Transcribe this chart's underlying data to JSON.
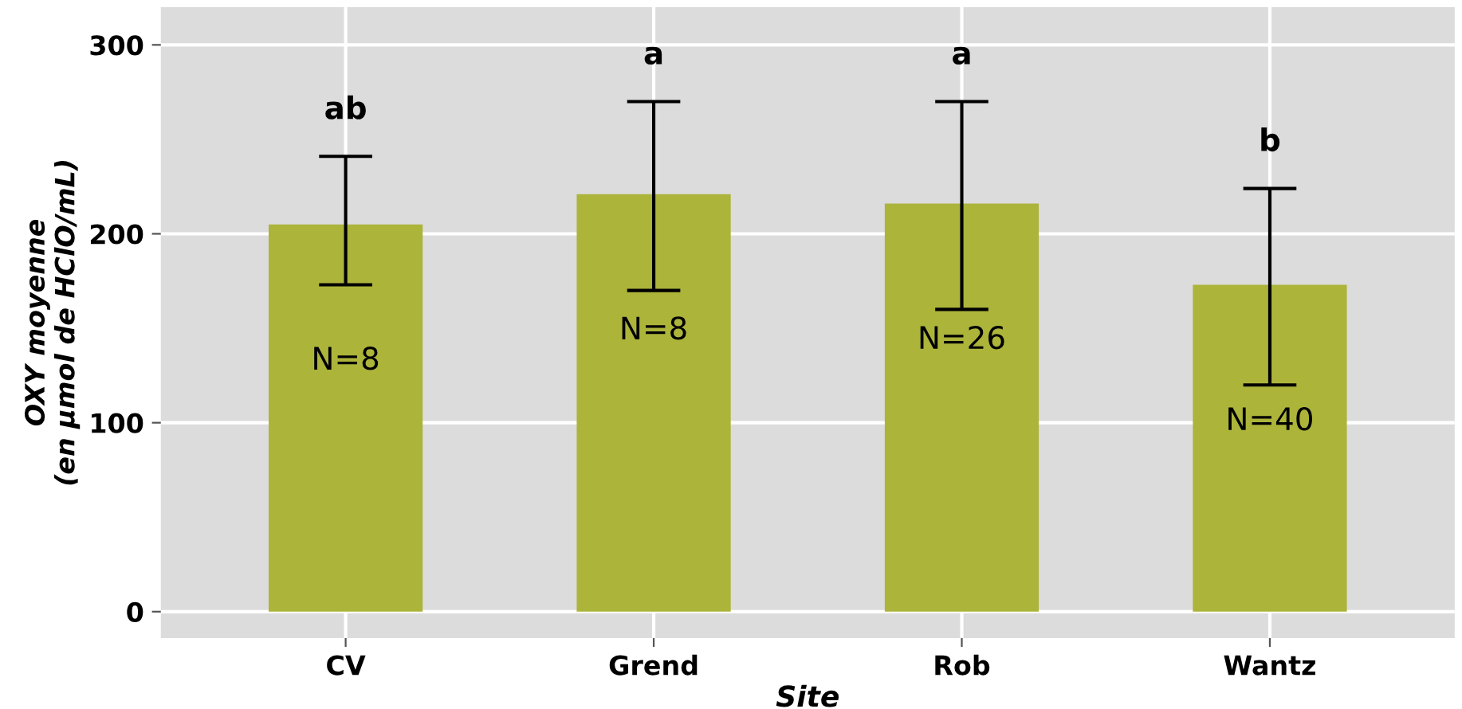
{
  "chart_data": {
    "type": "bar",
    "xlabel": "Site",
    "ylabel": "OXY moyenne\n(en µmol de HClO/mL)",
    "categories": [
      "CV",
      "Grend",
      "Rob",
      "Wantz"
    ],
    "values": [
      205,
      221,
      216,
      173
    ],
    "errors": [
      [
        173,
        241
      ],
      [
        170,
        270
      ],
      [
        160,
        270
      ],
      [
        120,
        224
      ]
    ],
    "color": "#acb43a",
    "ylim": [
      -14,
      320
    ],
    "yticks": [
      0,
      100,
      200,
      300
    ],
    "grid": true,
    "annotations": [
      "ab",
      "a",
      "a",
      "b",
      "N=8",
      "N=8",
      "N=26",
      "N=40"
    ]
  }
}
